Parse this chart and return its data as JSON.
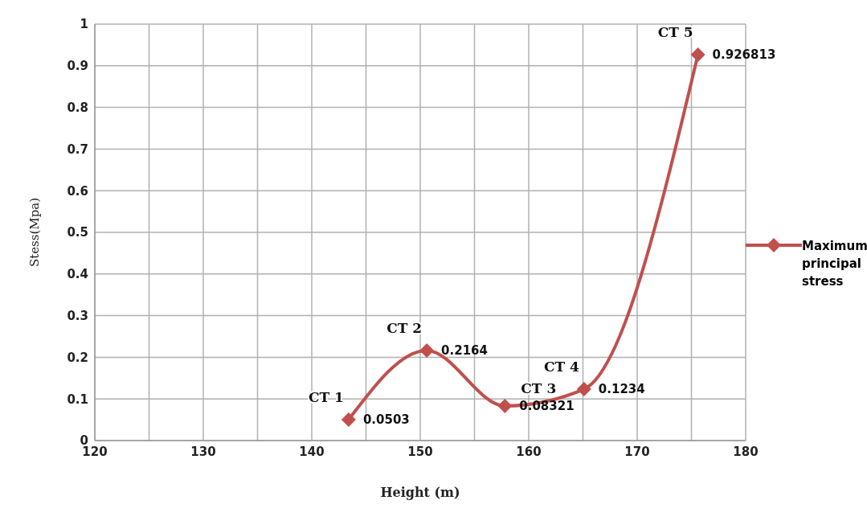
{
  "chart_data": {
    "type": "line",
    "xlabel": "Height (m)",
    "ylabel": "Stess(Mpa)",
    "x": [
      143.4,
      150.6,
      157.8,
      165.1,
      175.6
    ],
    "series": [
      {
        "name": "Maximum principal stress",
        "color": "#c0504d",
        "values": [
          0.0503,
          0.2164,
          0.08321,
          0.1234,
          0.926813
        ]
      }
    ],
    "xlim": [
      120,
      180
    ],
    "xticks": [
      120,
      {
        "value": 125,
        "label": null
      },
      130,
      {
        "value": 135,
        "label": null
      },
      140,
      {
        "value": 145,
        "label": null
      },
      150,
      {
        "value": 155,
        "label": null
      },
      160,
      {
        "value": 165,
        "label": null
      },
      170,
      {
        "value": 175,
        "label": null
      },
      180
    ],
    "ylim": [
      0,
      1
    ],
    "yticks": [
      0,
      0.1,
      0.2,
      0.3,
      0.4,
      0.5,
      0.6,
      0.7,
      0.8,
      0.9,
      1
    ],
    "annotations": [
      {
        "text": "CT 1",
        "x": 143.4,
        "y": 0.0503
      },
      {
        "text": "CT 2",
        "x": 150.6,
        "y": 0.2164
      },
      {
        "text": "CT 3",
        "x": 157.8,
        "y": 0.08321
      },
      {
        "text": "CT 4",
        "x": 165.1,
        "y": 0.1234
      },
      {
        "text": "CT 5",
        "x": 175.6,
        "y": 0.926813
      }
    ],
    "data_labels": true,
    "grid": true,
    "legend": "right",
    "marker": "diamond",
    "line_style": "solid"
  }
}
